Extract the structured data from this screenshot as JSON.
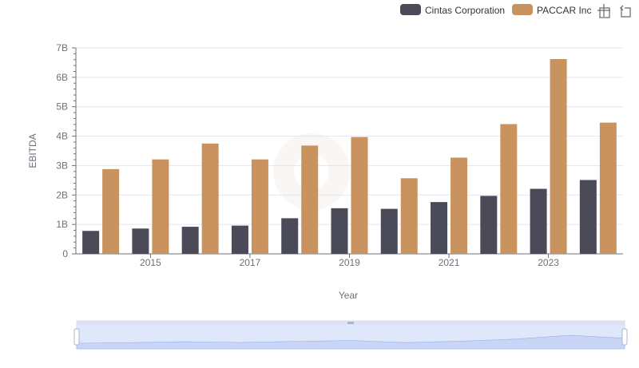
{
  "chart_data": {
    "type": "bar",
    "xlabel": "Year",
    "ylabel": "EBITDA",
    "ylim": [
      0,
      7000000000
    ],
    "y_ticks": [
      "0",
      "1B",
      "2B",
      "3B",
      "4B",
      "5B",
      "6B",
      "7B"
    ],
    "x": [
      2014,
      2015,
      2016,
      2017,
      2018,
      2019,
      2020,
      2021,
      2022,
      2023,
      2024
    ],
    "x_tick_labels": [
      "2015",
      "2017",
      "2019",
      "2021",
      "2023"
    ],
    "series": [
      {
        "name": "Cintas Corporation",
        "color": "#4a4a58",
        "values": [
          780000000,
          860000000,
          920000000,
          960000000,
          1210000000,
          1550000000,
          1530000000,
          1760000000,
          1970000000,
          2210000000,
          2510000000
        ]
      },
      {
        "name": "PACCAR Inc",
        "color": "#c8935e",
        "values": [
          2880000000,
          3210000000,
          3750000000,
          3210000000,
          3680000000,
          3970000000,
          2570000000,
          3270000000,
          4410000000,
          6620000000,
          4460000000
        ]
      }
    ],
    "legend_position": "top-right",
    "grid": true,
    "toolbox_icons": [
      "zoom-icon",
      "restore-icon"
    ],
    "datazoom": true
  }
}
